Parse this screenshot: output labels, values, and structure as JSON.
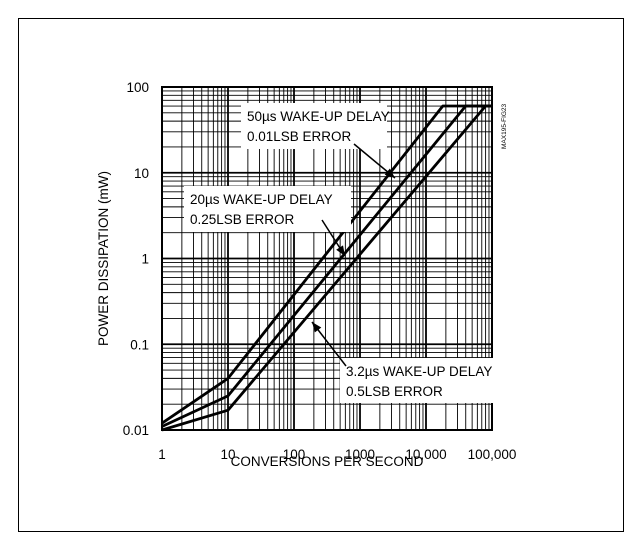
{
  "figure_id": "MAX195-FIG23",
  "chart_data": {
    "type": "line",
    "x_scale": "log",
    "y_scale": "log",
    "xlabel": "CONVERSIONS PER SECOND",
    "ylabel": "POWER DISSIPATION (mW)",
    "xlim": [
      1,
      100000
    ],
    "ylim": [
      0.01,
      100
    ],
    "grid": true,
    "x_tick_labels": [
      "1",
      "10",
      "100",
      "1000",
      "10,000",
      "100,000"
    ],
    "y_tick_labels": [
      "0.01",
      "0.1",
      "1",
      "10",
      "100"
    ],
    "series": [
      {
        "name": "50µs WAKE-UP DELAY 0.01LSB ERROR",
        "points": [
          [
            1,
            0.012
          ],
          [
            10,
            0.04
          ],
          [
            18000,
            60
          ],
          [
            100000,
            60
          ]
        ]
      },
      {
        "name": "20µs WAKE-UP DELAY 0.25LSB ERROR",
        "points": [
          [
            1,
            0.011
          ],
          [
            10,
            0.025
          ],
          [
            40000,
            60
          ],
          [
            100000,
            60
          ]
        ]
      },
      {
        "name": "3.2µs WAKE-UP DELAY 0.5LSB ERROR",
        "points": [
          [
            1,
            0.01
          ],
          [
            10,
            0.017
          ],
          [
            80000,
            60
          ],
          [
            100000,
            60
          ]
        ]
      }
    ],
    "annotations": [
      {
        "line1": "50µs WAKE-UP DELAY",
        "line2": "0.01LSB ERROR",
        "series": 0
      },
      {
        "line1": "20µs WAKE-UP DELAY",
        "line2": "0.25LSB ERROR",
        "series": 1
      },
      {
        "line1": "3.2µs WAKE-UP DELAY",
        "line2": "0.5LSB ERROR",
        "series": 2
      }
    ]
  }
}
